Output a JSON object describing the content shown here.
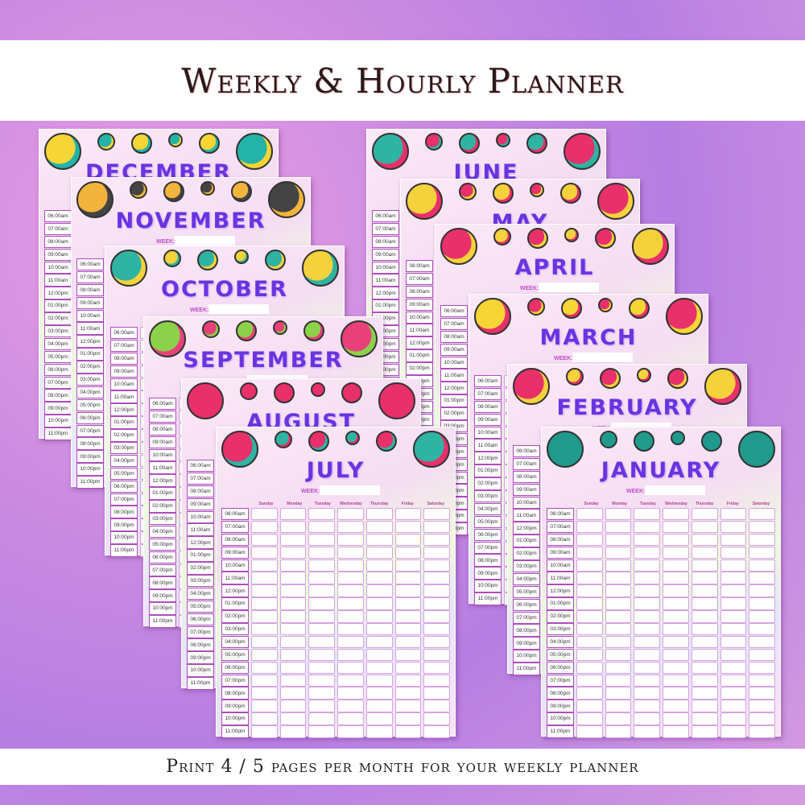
{
  "title": "Weekly & Hourly Planner",
  "footer": "Print 4 / 5 pages per month for your weekly planner",
  "week_label": "WEEK:",
  "days": [
    "Sunday",
    "Monday",
    "Tuesday",
    "Wednesday",
    "Thursday",
    "Friday",
    "Saturday"
  ],
  "times": [
    "06:00am",
    "07:00am",
    "08:00am",
    "09:00am",
    "10:00am",
    "11:00am",
    "12:00pm",
    "01:00pm",
    "02:00pm",
    "03:00pm",
    "04:00pm",
    "05:00pm",
    "06:00pm",
    "07:00pm",
    "08:00pm",
    "09:00pm",
    "10:00pm",
    "11:00pm"
  ],
  "pages": [
    {
      "month": "DECEMBER",
      "icon": "smiley-icon",
      "colors": [
        "#f6d534",
        "#23b3a8"
      ]
    },
    {
      "month": "NOVEMBER",
      "icon": "cassette-icon",
      "colors": [
        "#f2b43c",
        "#444444"
      ]
    },
    {
      "month": "OCTOBER",
      "icon": "roller-skate-icon",
      "colors": [
        "#2fb3a3",
        "#f5d23b"
      ]
    },
    {
      "month": "SEPTEMBER",
      "icon": "slushie-icon",
      "colors": [
        "#8bd14a",
        "#e9407a"
      ]
    },
    {
      "month": "AUGUST",
      "icon": "scrunchie-icon",
      "colors": [
        "#e8306a",
        "#e8306a"
      ]
    },
    {
      "month": "JULY",
      "icon": "rubiks-cube-icon",
      "colors": [
        "#e8306a",
        "#2fb3a3"
      ]
    },
    {
      "month": "JUNE",
      "icon": "cd-icon",
      "colors": [
        "#2fb3a3",
        "#e8306a"
      ]
    },
    {
      "month": "MAY",
      "icon": "bracelet-icon",
      "colors": [
        "#f5d23b",
        "#e8306a"
      ]
    },
    {
      "month": "APRIL",
      "icon": "ring-pop-icon",
      "colors": [
        "#e8306a",
        "#f5d23b"
      ]
    },
    {
      "month": "MARCH",
      "icon": "smiley-icon",
      "colors": [
        "#f6d534",
        "#e8306a"
      ]
    },
    {
      "month": "FEBRUARY",
      "icon": "yoyo-icon",
      "colors": [
        "#e8306a",
        "#f5d23b"
      ]
    },
    {
      "month": "JANUARY",
      "icon": "disco-ball-icon",
      "colors": [
        "#1f9a8c",
        "#1f9a8c"
      ]
    }
  ]
}
